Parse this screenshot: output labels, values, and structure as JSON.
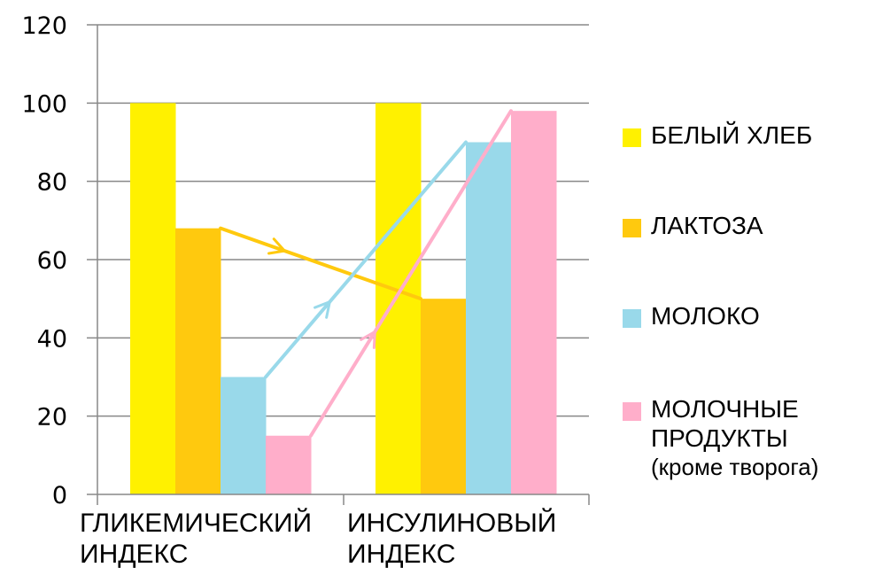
{
  "chart_data": {
    "type": "bar",
    "title": "",
    "xlabel": "",
    "ylabel": "",
    "ylim": [
      0,
      120
    ],
    "yticks": [
      0,
      20,
      40,
      60,
      80,
      100,
      120
    ],
    "grid": true,
    "legend_position": "right",
    "categories": [
      "ГЛИКЕМИЧЕСКИЙ ИНДЕКС",
      "ИНСУЛИНОВЫЙ ИНДЕКС"
    ],
    "series": [
      {
        "name": "БЕЛЫЙ ХЛЕБ",
        "color": "#FFF100",
        "values": [
          100,
          100
        ]
      },
      {
        "name": "ЛАКТОЗА",
        "color": "#FFC90E",
        "values": [
          68,
          50
        ]
      },
      {
        "name": "МОЛОКО",
        "color": "#99D9EA",
        "values": [
          30,
          90
        ]
      },
      {
        "name": "МОЛОЧНЫЕ ПРОДУКТЫ (кроме творога)",
        "color": "#FFAECA",
        "values": [
          15,
          98
        ]
      }
    ],
    "annotations": [
      {
        "type": "arrow",
        "series": "ЛАКТОЗА",
        "from": 68,
        "to": 50,
        "color": "#FFC90E"
      },
      {
        "type": "arrow",
        "series": "МОЛОКО",
        "from": 30,
        "to": 90,
        "color": "#99D9EA"
      },
      {
        "type": "arrow",
        "series": "МОЛОЧНЫЕ ПРОДУКТЫ (кроме творога)",
        "from": 15,
        "to": 98,
        "color": "#FFAECA"
      }
    ]
  },
  "axis": {
    "y_ticks": [
      "0",
      "20",
      "40",
      "60",
      "80",
      "100",
      "120"
    ],
    "x_labels": [
      {
        "line1": "ГЛИКЕМИЧЕСКИЙ",
        "line2": "ИНДЕКС"
      },
      {
        "line1": "ИНСУЛИНОВЫЙ",
        "line2": "ИНДЕКС"
      }
    ]
  },
  "legend": {
    "items": [
      {
        "label": "БЕЛЫЙ ХЛЕБ",
        "color": "#FFF100"
      },
      {
        "label": "ЛАКТОЗА",
        "color": "#FFC90E"
      },
      {
        "label": "МОЛОКО",
        "color": "#99D9EA"
      },
      {
        "label": "МОЛОЧНЫЕ\nПРОДУКТЫ",
        "sub": "(кроме творога)",
        "color": "#FFAECA"
      }
    ]
  },
  "colors": {
    "grid": "#888888",
    "axis": "#888888"
  }
}
